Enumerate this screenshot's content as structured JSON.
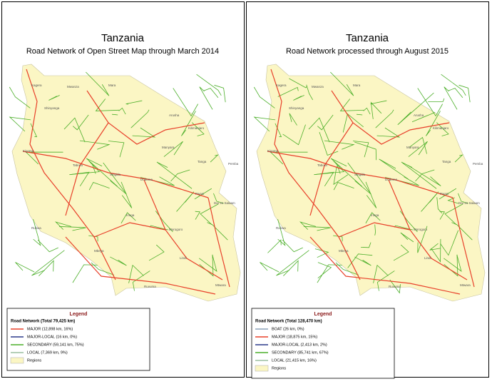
{
  "panels": [
    {
      "title": "Tanzania",
      "subtitle": "Road Network of Open Street Map through March 2014",
      "region_labels": [
        "Kagera",
        "Mwanza",
        "Mara",
        "Shinyanga",
        "Arusha",
        "Kilimanjaro",
        "Manyara",
        "Tanga",
        "Kigoma",
        "Tabora",
        "Singida",
        "Dodoma",
        "Pwani",
        "Dar es Salaam",
        "Morogoro",
        "Iringa",
        "Mbeya",
        "Rukwa",
        "Ruvuma",
        "Lindi",
        "Mtwara",
        "Pemba"
      ],
      "legend": {
        "title": "Legend",
        "heading": "Road Network (Total 79,425 km)",
        "items": [
          {
            "label": "MAJOR (12,898 km, 16%)",
            "color": "#e8402a",
            "kind": "line"
          },
          {
            "label": "MAJOR-LOCAL (16 km, 0%)",
            "color": "#2b3a8c",
            "kind": "line"
          },
          {
            "label": "SECONDARY (59,141 km, 75%)",
            "color": "#4caf2a",
            "kind": "line"
          },
          {
            "label": "LOCAL (7,369 km, 9%)",
            "color": "#9cbfa0",
            "kind": "line"
          },
          {
            "label": "Regions",
            "color": "#fbf6c4",
            "kind": "box"
          }
        ]
      }
    },
    {
      "title": "Tanzania",
      "subtitle": "Road Network processed through August 2015",
      "region_labels": [
        "Kagera",
        "Mwanza",
        "Mara",
        "Shinyanga",
        "Arusha",
        "Kilimanjaro",
        "Manyara",
        "Tanga",
        "Kigoma",
        "Tabora",
        "Singida",
        "Dodoma",
        "Pwani",
        "Dar es Salaam",
        "Morogoro",
        "Iringa",
        "Mbeya",
        "Rukwa",
        "Ruvuma",
        "Lindi",
        "Mtwara",
        "Pemba"
      ],
      "legend": {
        "title": "Legend",
        "heading": "Road Network (Total 128,470 km)",
        "items": [
          {
            "label": "BOAT (26 km, 0%)",
            "color": "#8aa0b8",
            "kind": "line"
          },
          {
            "label": "MAJOR (18,875 km, 15%)",
            "color": "#e8402a",
            "kind": "line"
          },
          {
            "label": "MAJOR-LOCAL (2,413 km, 2%)",
            "color": "#2b3a8c",
            "kind": "line"
          },
          {
            "label": "SECONDARY (85,741 km, 67%)",
            "color": "#4caf2a",
            "kind": "line"
          },
          {
            "label": "LOCAL (21,415 km, 16%)",
            "color": "#9cbfa0",
            "kind": "line"
          },
          {
            "label": "Regions",
            "color": "#fbf6c4",
            "kind": "box"
          }
        ]
      }
    }
  ]
}
